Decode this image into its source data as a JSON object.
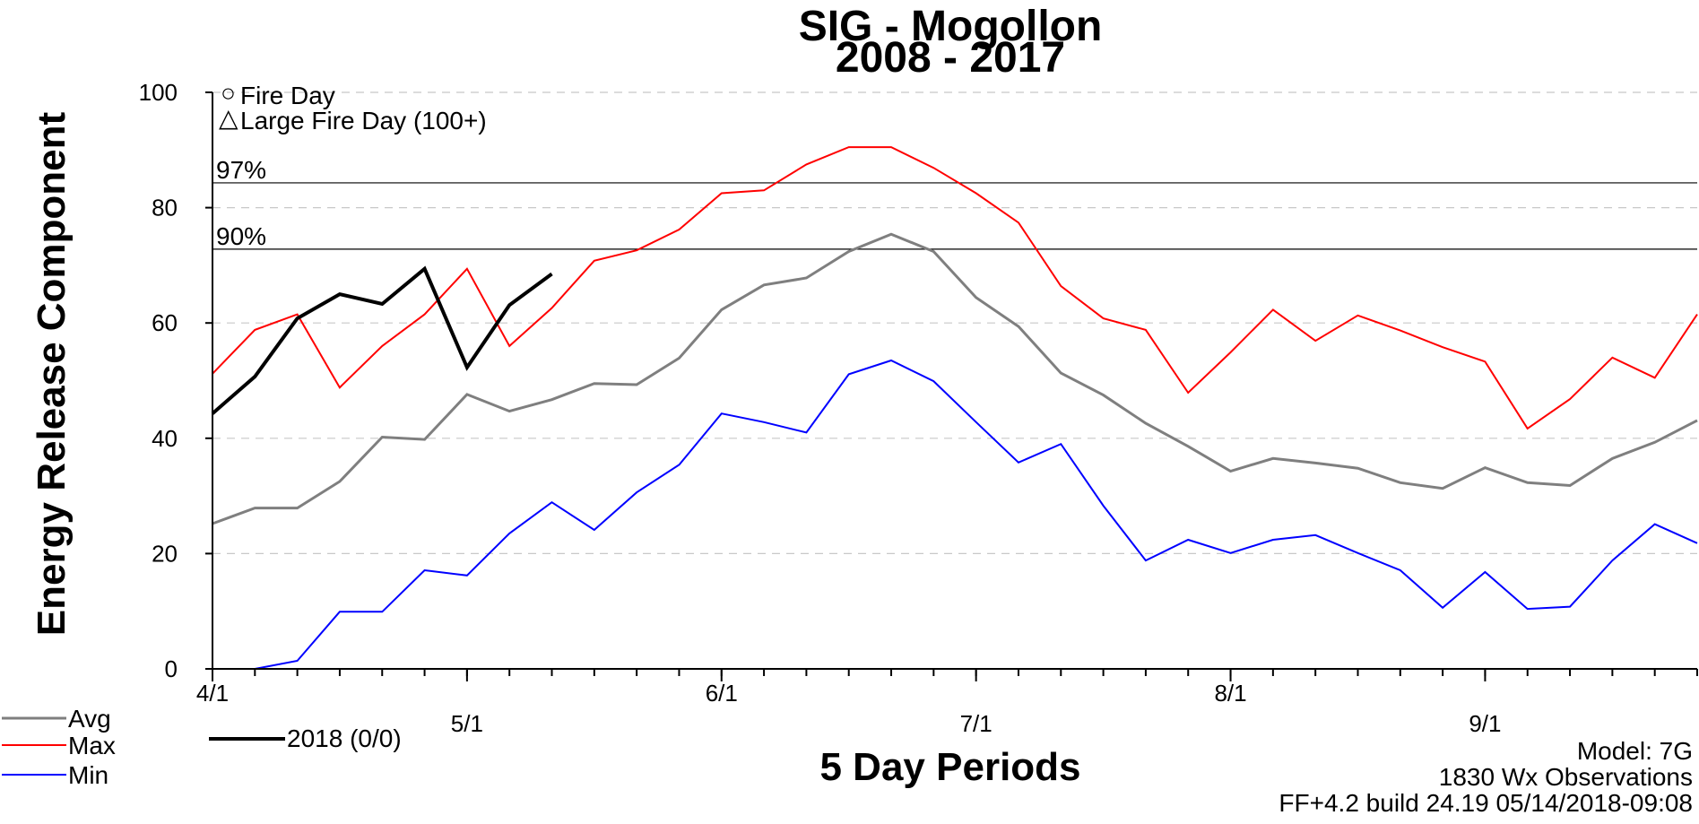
{
  "chart_data": {
    "type": "line",
    "title": "SIG - Mogollon",
    "subtitle": "2008 - 2017",
    "ylabel": "Energy Release Component",
    "xlabel": "5 Day Periods",
    "ylim": [
      0,
      100
    ],
    "yticks": [
      "0",
      "20",
      "40",
      "60",
      "80",
      "100"
    ],
    "xticks_upper": [
      "4/1",
      "6/1",
      "8/1"
    ],
    "xticks_lower": [
      "5/1",
      "7/1",
      "9/1"
    ],
    "periods": 35,
    "grid": "dashed horizontal",
    "percentiles": [
      {
        "label": "97%",
        "value": 84.3
      },
      {
        "label": "90%",
        "value": 72.8
      }
    ],
    "symbol_legend": [
      {
        "symbol": "○",
        "label": "Fire Day"
      },
      {
        "symbol": "△",
        "label": "Large Fire Day (100+)"
      }
    ],
    "series": [
      {
        "name": "Avg",
        "color": "#7f7f7f",
        "width": 3,
        "values": [
          25.2,
          27.9,
          27.9,
          32.5,
          40.2,
          39.8,
          47.6,
          44.7,
          46.7,
          49.5,
          49.3,
          53.9,
          62.3,
          66.6,
          67.8,
          72.4,
          75.4,
          72.4,
          64.4,
          59.4,
          51.3,
          47.5,
          42.6,
          38.6,
          34.3,
          36.5,
          35.7,
          34.8,
          32.3,
          31.3,
          34.9,
          32.3,
          31.8,
          36.5,
          39.3,
          43.1
        ]
      },
      {
        "name": "Max",
        "color": "#ff0000",
        "width": 2,
        "values": [
          51.2,
          58.8,
          61.5,
          48.8,
          56.0,
          61.5,
          69.4,
          56.0,
          62.6,
          70.8,
          72.6,
          76.2,
          82.5,
          83.0,
          87.5,
          90.5,
          90.5,
          86.9,
          82.5,
          77.4,
          66.4,
          60.8,
          58.8,
          47.9,
          54.9,
          62.3,
          56.9,
          61.3,
          58.7,
          55.8,
          53.3,
          41.7,
          46.8,
          54.0,
          50.5,
          61.5
        ]
      },
      {
        "name": "Min",
        "color": "#0000ff",
        "width": 2,
        "values": [
          0,
          0,
          1.4,
          9.9,
          9.9,
          17.1,
          16.2,
          23.5,
          28.9,
          24.1,
          30.6,
          35.4,
          44.3,
          42.8,
          41.0,
          51.1,
          53.5,
          49.9,
          42.8,
          35.8,
          39.0,
          28.3,
          18.8,
          22.4,
          20.1,
          22.4,
          23.2,
          20.1,
          17.1,
          10.6,
          16.8,
          10.4,
          10.8,
          18.8,
          25.1,
          21.8
        ]
      },
      {
        "name": "2018 (0/0)",
        "color": "#000000",
        "width": 4,
        "values": [
          44.3,
          50.7,
          60.8,
          65.0,
          63.3,
          69.4,
          52.3,
          63.1,
          68.5
        ]
      }
    ]
  },
  "info": {
    "model": "Model: 7G",
    "observations": "1830 Wx Observations",
    "build": "FF+4.2 build 24.19 05/14/2018-09:08"
  }
}
